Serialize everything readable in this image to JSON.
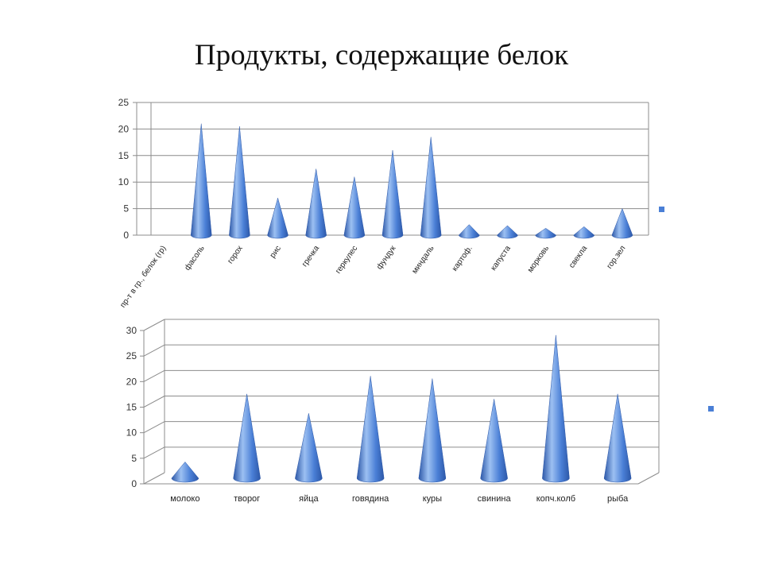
{
  "slide": {
    "title": "Продукты, содержащие белок"
  },
  "colors": {
    "cone": "#4a7fd6",
    "cone_light": "#9cc0f2",
    "cone_dark": "#2d58a8",
    "grid": "#8c8c8c",
    "legend": "#4a7fd6"
  },
  "chart_data": [
    {
      "type": "bar",
      "shape": "cone-3d",
      "categories": [
        "пр-т в гр., белок (гр)",
        "фасоль",
        "горох",
        "рис",
        "гречка",
        "геркулес",
        "фундук",
        "миндаль",
        "картоф.",
        "капуста",
        "морковь",
        "свекла",
        "гор.зел"
      ],
      "values": [
        0,
        21,
        20.5,
        7,
        12.5,
        11,
        16,
        18.5,
        2,
        1.8,
        1.3,
        1.6,
        5
      ],
      "ylim": [
        0,
        25
      ],
      "yticks": [
        0,
        5,
        10,
        15,
        20,
        25
      ],
      "grid": true,
      "legend": "right"
    },
    {
      "type": "bar",
      "shape": "cone-3d",
      "categories": [
        "молоко",
        "творог",
        "яйца",
        "говядина",
        "куры",
        "свинина",
        "копч.колб",
        "рыба"
      ],
      "values": [
        3.2,
        16.5,
        12.7,
        20,
        19.5,
        15.5,
        28,
        16.5
      ],
      "ylim": [
        0,
        30
      ],
      "yticks": [
        0,
        5,
        10,
        15,
        20,
        25,
        30
      ],
      "grid": true,
      "legend": "right"
    }
  ]
}
